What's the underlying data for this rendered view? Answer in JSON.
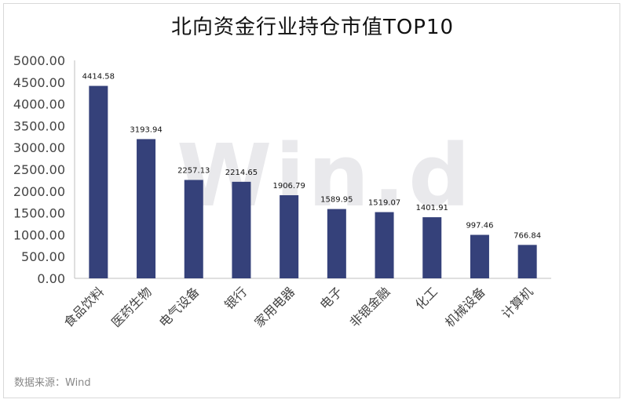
{
  "chart_data": {
    "type": "bar",
    "title": "北向资金行业持仓市值TOP10",
    "xlabel": "",
    "ylabel": "",
    "categories": [
      "食品饮料",
      "医药生物",
      "电气设备",
      "银行",
      "家用电器",
      "电子",
      "非银金融",
      "化工",
      "机械设备",
      "计算机"
    ],
    "values": [
      4414.58,
      3193.94,
      2257.13,
      2214.65,
      1906.79,
      1589.95,
      1519.07,
      1401.91,
      997.46,
      766.84
    ],
    "value_labels": [
      "4414.58",
      "3193.94",
      "2257.13",
      "2214.65",
      "1906.79",
      "1589.95",
      "1519.07",
      "1401.91",
      "997.46",
      "766.84"
    ],
    "ylim": [
      0,
      5000
    ],
    "y_ticks": [
      0,
      500,
      1000,
      1500,
      2000,
      2500,
      3000,
      3500,
      4000,
      4500,
      5000
    ],
    "y_tick_labels": [
      "0.00",
      "500.00",
      "1000.00",
      "1500.00",
      "2000.00",
      "2500.00",
      "3000.00",
      "3500.00",
      "4000.00",
      "4500.00",
      "5000.00"
    ],
    "grid": false,
    "bar_color": "#35417a"
  },
  "watermark": "Win.d",
  "source": "数据来源：Wind"
}
